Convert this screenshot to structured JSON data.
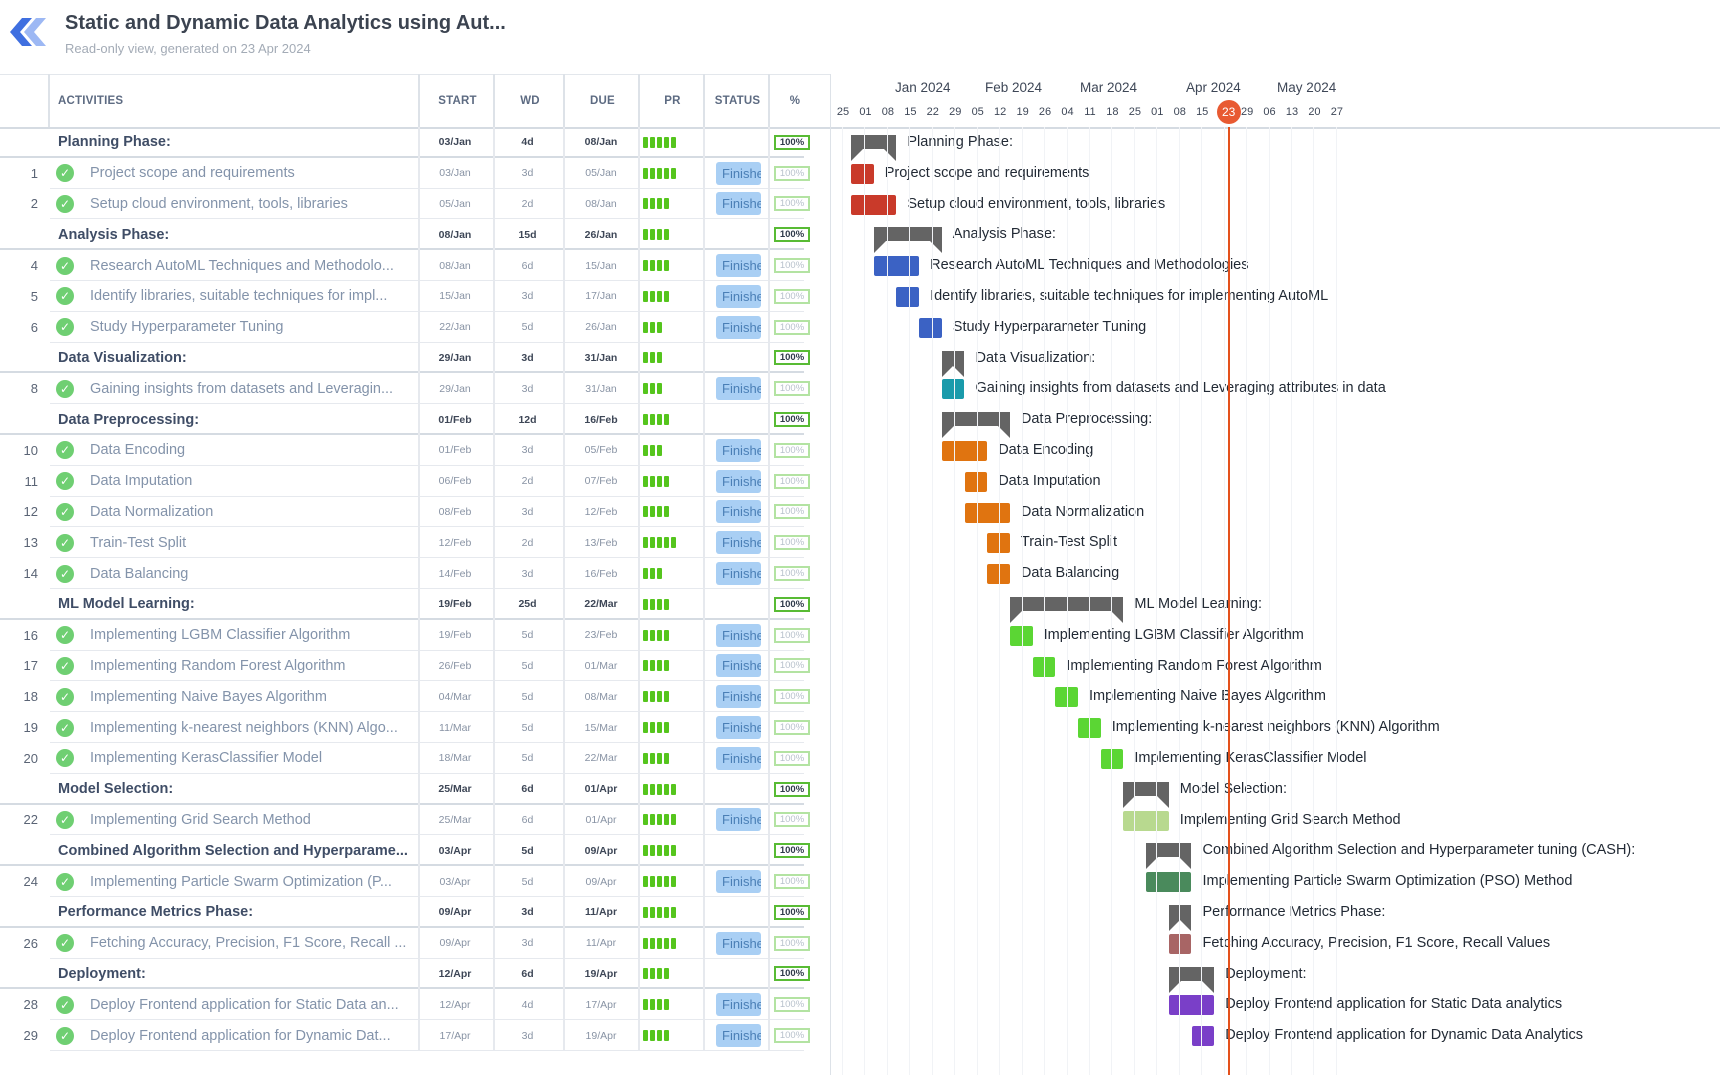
{
  "header": {
    "title": "Static and Dynamic Data Analytics using Aut...",
    "subtitle": "Read-only view, generated on 23 Apr 2024"
  },
  "columns": {
    "activities": "ACTIVITIES",
    "start": "START",
    "wd": "WD",
    "due": "DUE",
    "pr": "PR",
    "status": "STATUS",
    "pct": "%"
  },
  "timeline": {
    "months": [
      "Jan 2024",
      "Feb 2024",
      "Mar 2024",
      "Apr 2024",
      "May 2024"
    ],
    "weeks": [
      "25",
      "01",
      "08",
      "15",
      "22",
      "29",
      "05",
      "12",
      "19",
      "26",
      "04",
      "11",
      "18",
      "25",
      "01",
      "08",
      "15",
      "23",
      "29",
      "06",
      "13",
      "20",
      "27"
    ],
    "today": "23"
  },
  "colors": {
    "phase": "#646464",
    "red": "#c93a2a",
    "blue": "#3b62c4",
    "teal": "#1a9bab",
    "orange": "#e07410",
    "green": "#5bd634",
    "lightgreen": "#b8d98f",
    "darkgreen": "#4a8a5c",
    "brown": "#a86565",
    "purple": "#7a3fc8",
    "today": "#e4511c"
  },
  "rows": [
    {
      "num": "",
      "phase": true,
      "name": "Planning Phase:",
      "start": "03/Jan",
      "wd": "4d",
      "due": "08/Jan",
      "pr": 5,
      "status": "",
      "pct": "100%",
      "color": "phase",
      "x0": 0.0,
      "x1": 2.0
    },
    {
      "num": "1",
      "phase": false,
      "name": "Project scope and requirements",
      "start": "03/Jan",
      "wd": "3d",
      "due": "05/Jan",
      "pr": 5,
      "status": "Finished",
      "pct": "100%",
      "color": "red",
      "x0": 0.0,
      "x1": 1.0
    },
    {
      "num": "2",
      "phase": false,
      "name": "Setup cloud environment, tools, libraries",
      "start": "05/Jan",
      "wd": "2d",
      "due": "08/Jan",
      "pr": 4,
      "status": "Finished",
      "pct": "100%",
      "color": "red",
      "x0": 0.0,
      "x1": 2.0
    },
    {
      "num": "",
      "phase": true,
      "name": "Analysis Phase:",
      "start": "08/Jan",
      "wd": "15d",
      "due": "26/Jan",
      "pr": 4,
      "status": "",
      "pct": "100%",
      "color": "phase",
      "x0": 1.0,
      "x1": 4.0
    },
    {
      "num": "4",
      "phase": false,
      "name": "Research AutoML Techniques and Methodolo...",
      "start": "08/Jan",
      "wd": "6d",
      "due": "15/Jan",
      "pr": 4,
      "status": "Finished",
      "pct": "100%",
      "color": "blue",
      "x0": 1.0,
      "x1": 3.0,
      "label": "Research AutoML Techniques and Methodologies"
    },
    {
      "num": "5",
      "phase": false,
      "name": "Identify libraries, suitable techniques for impl...",
      "start": "15/Jan",
      "wd": "3d",
      "due": "17/Jan",
      "pr": 4,
      "status": "Finished",
      "pct": "100%",
      "color": "blue",
      "x0": 2.0,
      "x1": 3.0,
      "label": "Identify libraries, suitable techniques for implementing AutoML"
    },
    {
      "num": "6",
      "phase": false,
      "name": "Study Hyperparameter Tuning",
      "start": "22/Jan",
      "wd": "5d",
      "due": "26/Jan",
      "pr": 3,
      "status": "Finished",
      "pct": "100%",
      "color": "blue",
      "x0": 3.0,
      "x1": 4.0
    },
    {
      "num": "",
      "phase": true,
      "name": "Data Visualization:",
      "start": "29/Jan",
      "wd": "3d",
      "due": "31/Jan",
      "pr": 3,
      "status": "",
      "pct": "100%",
      "color": "phase",
      "x0": 4.0,
      "x1": 5.0
    },
    {
      "num": "8",
      "phase": false,
      "name": "Gaining insights from datasets and Leveragin...",
      "start": "29/Jan",
      "wd": "3d",
      "due": "31/Jan",
      "pr": 3,
      "status": "Finished",
      "pct": "100%",
      "color": "teal",
      "x0": 4.0,
      "x1": 5.0,
      "label": "Gaining insights from datasets and Leveraging attributes in data"
    },
    {
      "num": "",
      "phase": true,
      "name": "Data Preprocessing:",
      "start": "01/Feb",
      "wd": "12d",
      "due": "16/Feb",
      "pr": 4,
      "status": "",
      "pct": "100%",
      "color": "phase",
      "x0": 4.0,
      "x1": 7.0
    },
    {
      "num": "10",
      "phase": false,
      "name": "Data Encoding",
      "start": "01/Feb",
      "wd": "3d",
      "due": "05/Feb",
      "pr": 3,
      "status": "Finished",
      "pct": "100%",
      "color": "orange",
      "x0": 4.0,
      "x1": 6.0
    },
    {
      "num": "11",
      "phase": false,
      "name": "Data Imputation",
      "start": "06/Feb",
      "wd": "2d",
      "due": "07/Feb",
      "pr": 4,
      "status": "Finished",
      "pct": "100%",
      "color": "orange",
      "x0": 5.0,
      "x1": 6.0
    },
    {
      "num": "12",
      "phase": false,
      "name": "Data Normalization",
      "start": "08/Feb",
      "wd": "3d",
      "due": "12/Feb",
      "pr": 4,
      "status": "Finished",
      "pct": "100%",
      "color": "orange",
      "x0": 5.0,
      "x1": 7.0
    },
    {
      "num": "13",
      "phase": false,
      "name": "Train-Test Split",
      "start": "12/Feb",
      "wd": "2d",
      "due": "13/Feb",
      "pr": 5,
      "status": "Finished",
      "pct": "100%",
      "color": "orange",
      "x0": 6.0,
      "x1": 7.0
    },
    {
      "num": "14",
      "phase": false,
      "name": "Data Balancing",
      "start": "14/Feb",
      "wd": "3d",
      "due": "16/Feb",
      "pr": 3,
      "status": "Finished",
      "pct": "100%",
      "color": "orange",
      "x0": 6.0,
      "x1": 7.0
    },
    {
      "num": "",
      "phase": true,
      "name": "ML Model Learning:",
      "start": "19/Feb",
      "wd": "25d",
      "due": "22/Mar",
      "pr": 4,
      "status": "",
      "pct": "100%",
      "color": "phase",
      "x0": 7.0,
      "x1": 12.0
    },
    {
      "num": "16",
      "phase": false,
      "name": "Implementing LGBM Classifier Algorithm",
      "start": "19/Feb",
      "wd": "5d",
      "due": "23/Feb",
      "pr": 4,
      "status": "Finished",
      "pct": "100%",
      "color": "green",
      "x0": 7.0,
      "x1": 8.0
    },
    {
      "num": "17",
      "phase": false,
      "name": "Implementing Random Forest Algorithm",
      "start": "26/Feb",
      "wd": "5d",
      "due": "01/Mar",
      "pr": 4,
      "status": "Finished",
      "pct": "100%",
      "color": "green",
      "x0": 8.0,
      "x1": 9.0
    },
    {
      "num": "18",
      "phase": false,
      "name": "Implementing Naive Bayes Algorithm",
      "start": "04/Mar",
      "wd": "5d",
      "due": "08/Mar",
      "pr": 4,
      "status": "Finished",
      "pct": "100%",
      "color": "green",
      "x0": 9.0,
      "x1": 10.0
    },
    {
      "num": "19",
      "phase": false,
      "name": "Implementing k-nearest neighbors (KNN) Algo...",
      "start": "11/Mar",
      "wd": "5d",
      "due": "15/Mar",
      "pr": 4,
      "status": "Finished",
      "pct": "100%",
      "color": "green",
      "x0": 10.0,
      "x1": 11.0,
      "label": "Implementing k-nearest neighbors (KNN) Algorithm"
    },
    {
      "num": "20",
      "phase": false,
      "name": "Implementing KerasClassifier Model",
      "start": "18/Mar",
      "wd": "5d",
      "due": "22/Mar",
      "pr": 4,
      "status": "Finished",
      "pct": "100%",
      "color": "green",
      "x0": 11.0,
      "x1": 12.0
    },
    {
      "num": "",
      "phase": true,
      "name": "Model Selection:",
      "start": "25/Mar",
      "wd": "6d",
      "due": "01/Apr",
      "pr": 5,
      "status": "",
      "pct": "100%",
      "color": "phase",
      "x0": 12.0,
      "x1": 14.0
    },
    {
      "num": "22",
      "phase": false,
      "name": "Implementing Grid Search Method",
      "start": "25/Mar",
      "wd": "6d",
      "due": "01/Apr",
      "pr": 5,
      "status": "Finished",
      "pct": "100%",
      "color": "lightgreen",
      "x0": 12.0,
      "x1": 14.0
    },
    {
      "num": "",
      "phase": true,
      "name": "Combined Algorithm Selection and Hyperparame...",
      "start": "03/Apr",
      "wd": "5d",
      "due": "09/Apr",
      "pr": 5,
      "status": "",
      "pct": "100%",
      "color": "phase",
      "x0": 13.0,
      "x1": 15.0,
      "label": "Combined Algorithm Selection and Hyperparameter tuning (CASH):"
    },
    {
      "num": "24",
      "phase": false,
      "name": "Implementing Particle Swarm Optimization (P...",
      "start": "03/Apr",
      "wd": "5d",
      "due": "09/Apr",
      "pr": 5,
      "status": "Finished",
      "pct": "100%",
      "color": "darkgreen",
      "x0": 13.0,
      "x1": 15.0,
      "label": "Implementing Particle Swarm Optimization (PSO) Method"
    },
    {
      "num": "",
      "phase": true,
      "name": "Performance Metrics Phase:",
      "start": "09/Apr",
      "wd": "3d",
      "due": "11/Apr",
      "pr": 5,
      "status": "",
      "pct": "100%",
      "color": "phase",
      "x0": 14.0,
      "x1": 15.0
    },
    {
      "num": "26",
      "phase": false,
      "name": "Fetching Accuracy, Precision, F1 Score, Recall ...",
      "start": "09/Apr",
      "wd": "3d",
      "due": "11/Apr",
      "pr": 5,
      "status": "Finished",
      "pct": "100%",
      "color": "brown",
      "x0": 14.0,
      "x1": 15.0,
      "label": "Fetching Accuracy, Precision, F1 Score, Recall Values"
    },
    {
      "num": "",
      "phase": true,
      "name": "Deployment:",
      "start": "12/Apr",
      "wd": "6d",
      "due": "19/Apr",
      "pr": 4,
      "status": "",
      "pct": "100%",
      "color": "phase",
      "x0": 14.0,
      "x1": 16.0
    },
    {
      "num": "28",
      "phase": false,
      "name": "Deploy Frontend application for Static Data an...",
      "start": "12/Apr",
      "wd": "4d",
      "due": "17/Apr",
      "pr": 4,
      "status": "Finished",
      "pct": "100%",
      "color": "purple",
      "x0": 14.0,
      "x1": 16.0,
      "label": "Deploy Frontend application for Static Data analytics"
    },
    {
      "num": "29",
      "phase": false,
      "name": "Deploy Frontend application for Dynamic Dat...",
      "start": "17/Apr",
      "wd": "3d",
      "due": "19/Apr",
      "pr": 4,
      "status": "Finished",
      "pct": "100%",
      "color": "purple",
      "x0": 15.0,
      "x1": 16.0,
      "label": "Deploy Frontend application for Dynamic Data Analytics"
    }
  ]
}
